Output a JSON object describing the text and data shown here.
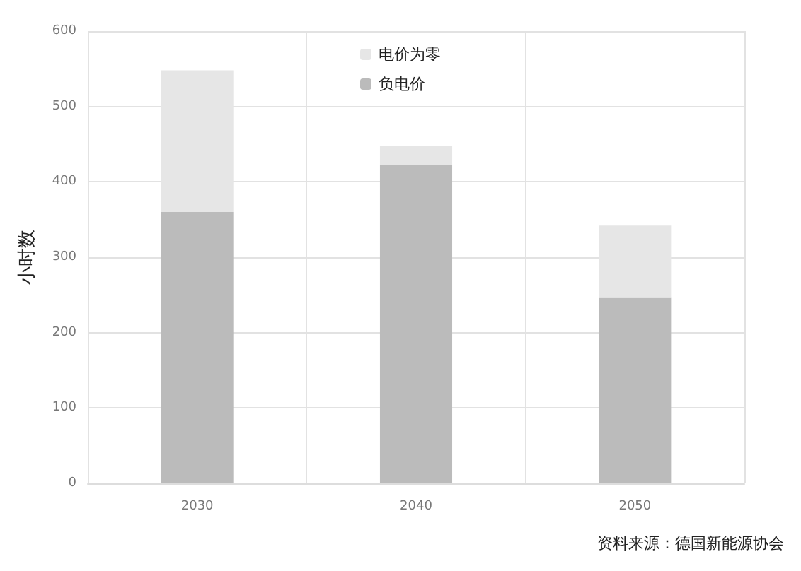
{
  "chart_data": {
    "type": "bar",
    "stacked": true,
    "ylabel": "小时数",
    "categories": [
      "2030",
      "2040",
      "2050"
    ],
    "series": [
      {
        "name": "负电价",
        "color": "#bbbbbb",
        "values": [
          360,
          422,
          247
        ]
      },
      {
        "name": "电价为零",
        "color": "#e6e6e6",
        "values": [
          188,
          26,
          95
        ]
      }
    ],
    "ylim": [
      0,
      600
    ],
    "yticks": [
      0,
      100,
      200,
      300,
      400,
      500,
      600
    ],
    "grid": true,
    "legend": "top",
    "annotations": [
      "资料来源：德国新能源协会"
    ]
  }
}
